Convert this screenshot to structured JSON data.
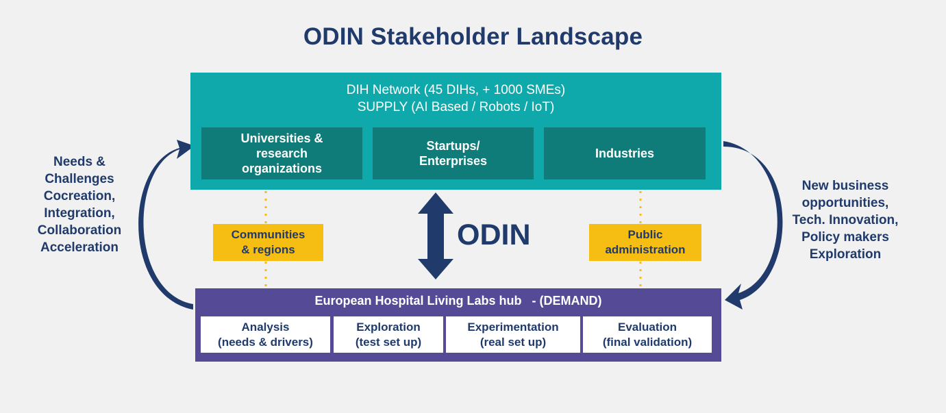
{
  "title": "ODIN Stakeholder Landscape",
  "supply": {
    "line1": "DIH Network (45 DIHs, + 1000 SMEs)",
    "line2": "SUPPLY (AI Based / Robots / IoT)",
    "cards": [
      {
        "label": "Universities & research organizations"
      },
      {
        "label": "Startups/ Enterprises"
      },
      {
        "label": "Industries"
      }
    ]
  },
  "demand": {
    "header": "European Hospital Living Labs hub   - (DEMAND)",
    "cards": [
      {
        "line1": "Analysis",
        "line2": "(needs & drivers)"
      },
      {
        "line1": "Exploration",
        "line2": "(test set up)"
      },
      {
        "line1": "Experimentation",
        "line2": "(real set up)"
      },
      {
        "line1": "Evaluation",
        "line2": "(final validation)"
      }
    ]
  },
  "middle": {
    "left_card": {
      "line1": "Communities",
      "line2": "& regions"
    },
    "right_card": {
      "line1": "Public",
      "line2": "administration"
    },
    "odin_label": "ODIN"
  },
  "left_text": [
    "Needs &",
    "Challenges",
    "Cocreation,",
    "Integration,",
    "Collaboration",
    "Acceleration"
  ],
  "right_text": [
    "New business",
    "opportunities,",
    "Tech. Innovation,",
    "Policy makers",
    "Exploration"
  ],
  "colors": {
    "background": "#f1f1f1",
    "title": "#1f3a6b",
    "supply_box": "#0fa9ab",
    "supply_card": "#0f7c79",
    "demand_box": "#544a96",
    "yellow": "#f6bd12",
    "arrow": "#1f3a6b"
  }
}
